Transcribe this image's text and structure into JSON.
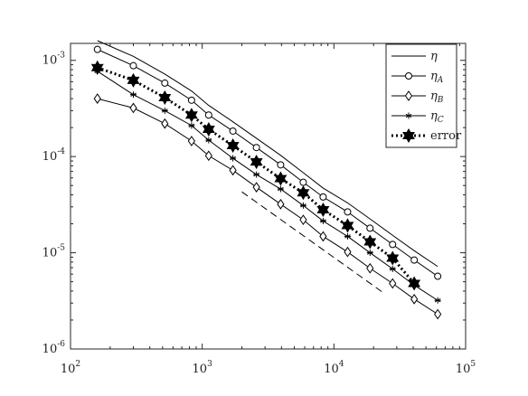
{
  "chart_data": {
    "type": "line",
    "xscale": "log",
    "yscale": "log",
    "x": [
      160,
      300,
      520,
      830,
      1120,
      1710,
      2580,
      3940,
      5850,
      8280,
      12700,
      18800,
      27900,
      40700,
      61400
    ],
    "series": [
      {
        "name": "η",
        "color": "#000000",
        "marker": "none",
        "line_style": "solid",
        "values": [
          0.0016,
          0.0011,
          0.00072,
          0.00048,
          0.00034,
          0.00023,
          0.000155,
          0.000103,
          6.8e-05,
          4.7e-05,
          3.3e-05,
          2.25e-05,
          1.52e-05,
          1.05e-05,
          7.2e-06
        ]
      },
      {
        "name": "η_A",
        "color": "#000000",
        "marker": "circle",
        "line_style": "solid",
        "values": [
          0.0013,
          0.00088,
          0.00058,
          0.000385,
          0.00027,
          0.000184,
          0.000124,
          8.2e-05,
          5.4e-05,
          3.8e-05,
          2.66e-05,
          1.8e-05,
          1.22e-05,
          8.4e-06,
          5.7e-06
        ]
      },
      {
        "name": "η_B",
        "color": "#000000",
        "marker": "diamond",
        "line_style": "solid",
        "values": [
          0.0004,
          0.00032,
          0.00022,
          0.000145,
          0.000102,
          7.2e-05,
          4.8e-05,
          3.2e-05,
          2.2e-05,
          1.48e-05,
          1.02e-05,
          6.9e-06,
          4.8e-06,
          3.3e-06,
          2.3e-06
        ]
      },
      {
        "name": "η_C",
        "color": "#000000",
        "marker": "asterisk",
        "line_style": "solid",
        "values": [
          0.00077,
          0.00044,
          0.0003,
          0.00021,
          0.000148,
          9.6e-05,
          6.5e-05,
          4.6e-05,
          3.1e-05,
          2.14e-05,
          1.48e-05,
          1e-05,
          6.8e-06,
          4.6e-06,
          3.2e-06
        ]
      },
      {
        "name": "error",
        "color": "#000000",
        "marker": "hexagram",
        "line_style": "dotted",
        "values": [
          0.00084,
          0.00062,
          0.00041,
          0.00027,
          0.000192,
          0.00013,
          8.8e-05,
          5.9e-05,
          4.2e-05,
          2.8e-05,
          1.92e-05,
          1.3e-05,
          8.8e-06,
          4.8e-06,
          null
        ]
      }
    ],
    "reference_line": {
      "x": [
        2000,
        24000
      ],
      "values": [
        4.3e-05,
        3.8e-06
      ],
      "color": "#000000",
      "line_style": "dashed"
    },
    "xlim": [
      100,
      100000
    ],
    "ylim": [
      1e-06,
      0.0015
    ],
    "xticks": [
      {
        "value": 100,
        "label": "10^2"
      },
      {
        "value": 1000,
        "label": "10^3"
      },
      {
        "value": 10000,
        "label": "10^4"
      },
      {
        "value": 100000,
        "label": "10^5"
      }
    ],
    "yticks": [
      {
        "value": 1e-06,
        "label": "10^-6"
      },
      {
        "value": 1e-05,
        "label": "10^-5"
      },
      {
        "value": 0.0001,
        "label": "10^-4"
      },
      {
        "value": 0.001,
        "label": "10^-3"
      }
    ],
    "grid": false,
    "legend": "upper right"
  }
}
